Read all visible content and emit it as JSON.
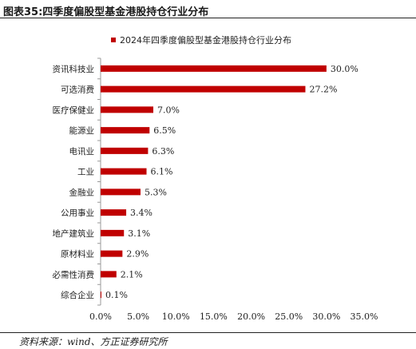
{
  "figure_title": "图表35:四季度偏股型基金港股持仓行业分布",
  "source": "资料来源：wind、方正证券研究所",
  "chart_data": {
    "type": "bar",
    "orientation": "horizontal",
    "title": "",
    "categories": [
      "资讯科技业",
      "可选消费",
      "医疗保健业",
      "能源业",
      "电讯业",
      "工业",
      "金融业",
      "公用事业",
      "地产建筑业",
      "原材料业",
      "必需性消费",
      "综合企业"
    ],
    "series": [
      {
        "name": "2024年四季度偏股型基金港股持仓行业分布",
        "values": [
          30.0,
          27.2,
          7.0,
          6.5,
          6.3,
          6.1,
          5.3,
          3.4,
          3.1,
          2.9,
          2.1,
          0.1
        ],
        "labels": [
          "30.0%",
          "27.2%",
          "7.0%",
          "6.5%",
          "6.3%",
          "6.1%",
          "5.3%",
          "3.4%",
          "3.1%",
          "2.9%",
          "2.1%",
          "0.1%"
        ]
      }
    ],
    "xticks": [
      "0.0%",
      "5.0%",
      "10.0%",
      "15.0%",
      "20.0%",
      "25.0%",
      "30.0%",
      "35.0%"
    ],
    "xlim": [
      0,
      35
    ],
    "legend_position": "top",
    "grid": false,
    "colors": {
      "bar": "#C00000"
    }
  }
}
